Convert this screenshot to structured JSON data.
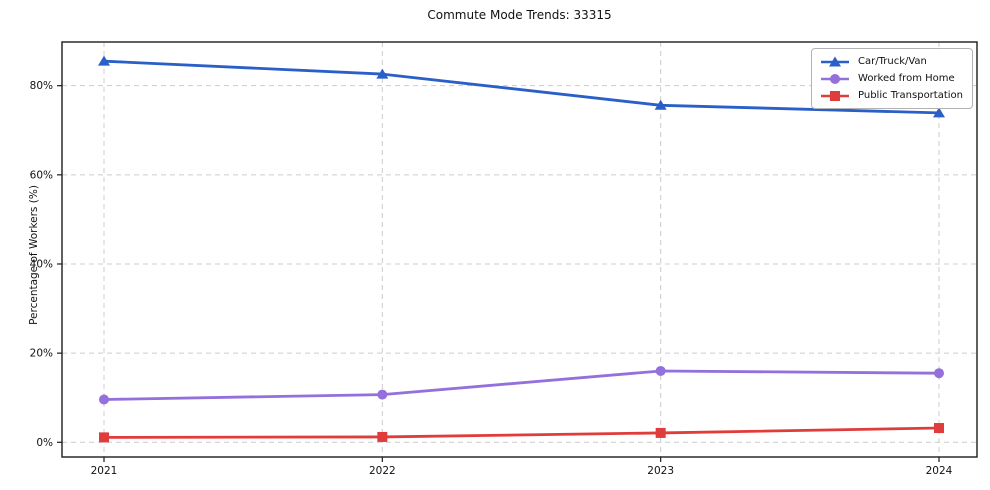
{
  "chart_data": {
    "type": "line",
    "title": "Commute Mode Trends: 33315",
    "xlabel": "",
    "ylabel": "Percentage of Workers (%)",
    "x": [
      2021,
      2022,
      2023,
      2024
    ],
    "x_tick_labels": [
      "2021",
      "2022",
      "2023",
      "2024"
    ],
    "y_ticks": [
      0,
      20,
      40,
      60,
      80
    ],
    "y_tick_labels": [
      "0%",
      "20%",
      "40%",
      "60%",
      "80%"
    ],
    "ylim": [
      -3.3,
      89.8
    ],
    "grid": "dashed, both axes",
    "legend_position": "upper right",
    "series": [
      {
        "name": "Car/Truck/Van",
        "color": "#2a5ec9",
        "marker": "triangle",
        "values": [
          85.5,
          82.6,
          75.6,
          73.9
        ]
      },
      {
        "name": "Worked from Home",
        "color": "#9370db",
        "marker": "circle",
        "values": [
          9.6,
          10.7,
          16.0,
          15.5
        ]
      },
      {
        "name": "Public Transportation",
        "color": "#e03c3c",
        "marker": "square",
        "values": [
          1.1,
          1.2,
          2.1,
          3.2
        ]
      }
    ],
    "style": {
      "grid_color": "#cccccc",
      "spine_color": "#1c1c1c",
      "background": "#ffffff"
    }
  }
}
